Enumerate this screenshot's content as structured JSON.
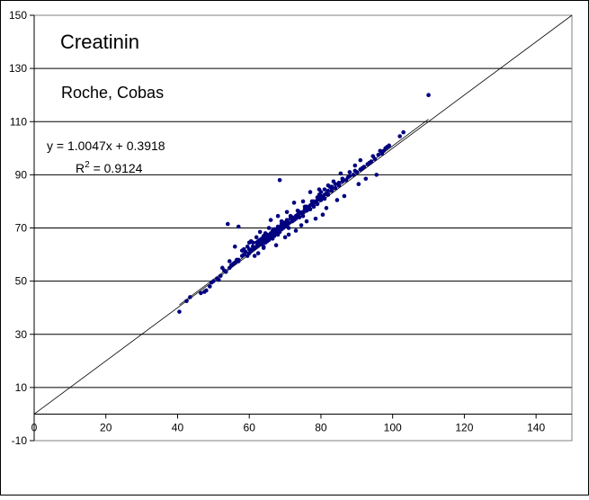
{
  "chart_data": {
    "type": "scatter",
    "title": "Creatinin",
    "subtitle": "Roche, Cobas",
    "equation": "y = 1.0047x + 0.3918",
    "r2_prefix": "R",
    "r2_sup": "2",
    "r2_value": " = 0.9124",
    "xlim": [
      0,
      150
    ],
    "ylim": [
      -10,
      150
    ],
    "xticks": [
      0,
      20,
      40,
      60,
      80,
      100,
      120,
      140
    ],
    "yticks": [
      -10,
      10,
      30,
      50,
      70,
      90,
      110,
      130,
      150
    ],
    "grid": "horizontal",
    "identity_line": {
      "slope": 1,
      "intercept": 0
    },
    "trendline": {
      "slope": 1.0047,
      "intercept": 0.3918
    },
    "colors": {
      "points": "#000080",
      "lines": "#000000",
      "grid": "#000000",
      "background": "#ffffff"
    },
    "x": [
      40.5,
      42.5,
      43.5,
      46.5,
      47.5,
      48.0,
      49.0,
      49.5,
      50.0,
      51.0,
      51.5,
      52.0,
      53.0,
      53.5,
      54.5,
      55.0,
      55.5,
      56.0,
      56.5,
      57.0,
      57.0,
      58.0,
      58.5,
      59.0,
      59.5,
      60.0,
      60.0,
      60.5,
      61.0,
      61.0,
      61.5,
      62.0,
      62.0,
      62.5,
      63.0,
      63.0,
      63.5,
      63.5,
      64.0,
      64.0,
      64.5,
      64.5,
      65.0,
      65.0,
      65.5,
      65.5,
      66.0,
      66.0,
      66.5,
      66.5,
      67.0,
      67.0,
      67.5,
      67.5,
      68.0,
      68.0,
      68.5,
      68.5,
      69.0,
      69.0,
      69.5,
      69.5,
      70.0,
      70.0,
      70.5,
      70.5,
      71.0,
      71.0,
      71.5,
      72.0,
      72.0,
      72.5,
      73.0,
      73.0,
      73.5,
      74.0,
      74.0,
      74.5,
      75.0,
      75.0,
      75.5,
      76.0,
      76.0,
      76.5,
      77.0,
      77.0,
      77.5,
      78.0,
      78.0,
      78.5,
      79.0,
      79.0,
      79.5,
      80.0,
      80.0,
      80.5,
      81.0,
      81.0,
      81.5,
      82.0,
      82.0,
      83.0,
      83.0,
      84.0,
      84.0,
      85.0,
      85.0,
      86.0,
      86.0,
      87.0,
      87.5,
      88.0,
      89.0,
      89.5,
      90.0,
      91.0,
      91.5,
      92.0,
      93.0,
      93.5,
      94.0,
      95.0,
      96.0,
      97.0,
      97.5,
      98.0,
      99.0,
      54.0,
      57.0,
      60.5,
      63.0,
      65.5,
      66.0,
      68.0,
      68.5,
      69.0,
      70.5,
      72.5,
      75.0,
      77.0,
      79.5,
      82.0,
      83.5,
      85.5,
      88.0,
      89.5,
      91.0,
      94.5,
      96.5,
      98.5,
      102.0,
      103.0,
      110.0,
      56.0,
      58.0,
      61.5,
      62.5,
      64.0,
      67.5,
      70.0,
      71.0,
      73.0,
      74.5,
      76.0,
      78.5,
      80.5,
      81.5,
      84.5,
      86.5,
      90.5,
      92.5,
      95.5,
      62.0,
      64.5,
      66.5,
      68.0,
      69.5,
      71.5,
      73.5,
      75.5,
      77.5,
      79.0,
      80.0,
      82.5,
      60.0,
      63.5,
      65.0,
      67.0,
      69.0,
      72.0,
      74.0,
      76.5,
      78.0,
      79.5,
      81.0,
      83.0,
      86.0,
      52.5,
      54.5,
      58.5,
      59.5,
      61.0,
      62.5,
      64.0,
      66.0,
      68.5,
      70.5
    ],
    "y": [
      38.5,
      42.5,
      44.0,
      45.5,
      46.0,
      46.5,
      48.0,
      49.5,
      50.0,
      51.0,
      50.5,
      52.0,
      54.0,
      53.5,
      55.0,
      56.0,
      56.5,
      57.0,
      58.0,
      58.0,
      57.5,
      59.5,
      60.0,
      61.0,
      59.5,
      60.5,
      62.0,
      61.5,
      62.0,
      63.0,
      62.5,
      63.0,
      64.5,
      63.5,
      64.0,
      65.5,
      64.0,
      66.0,
      65.0,
      63.0,
      66.0,
      64.5,
      66.5,
      65.0,
      67.0,
      65.5,
      66.5,
      68.0,
      67.5,
      66.0,
      68.5,
      67.0,
      68.0,
      69.5,
      69.0,
      67.5,
      70.0,
      68.5,
      69.5,
      71.0,
      70.0,
      71.5,
      70.5,
      72.0,
      71.0,
      73.0,
      72.0,
      70.0,
      73.5,
      72.5,
      74.0,
      73.0,
      74.5,
      73.5,
      75.0,
      74.0,
      76.0,
      75.5,
      76.0,
      74.5,
      77.0,
      76.5,
      78.0,
      77.0,
      78.5,
      77.0,
      79.0,
      78.0,
      80.0,
      79.5,
      80.5,
      79.0,
      81.0,
      80.5,
      82.0,
      81.5,
      82.5,
      81.0,
      83.0,
      82.5,
      84.0,
      84.0,
      85.5,
      85.0,
      86.5,
      86.0,
      87.0,
      87.5,
      88.5,
      88.0,
      89.0,
      89.5,
      90.0,
      91.5,
      91.0,
      92.0,
      92.5,
      93.0,
      94.0,
      94.5,
      95.0,
      96.0,
      97.5,
      98.0,
      99.0,
      100.0,
      101.0,
      71.5,
      70.5,
      65.0,
      68.5,
      70.0,
      73.0,
      74.5,
      88.0,
      72.5,
      76.0,
      79.5,
      80.0,
      83.5,
      84.5,
      86.0,
      87.5,
      90.5,
      91.0,
      93.5,
      95.5,
      97.0,
      99.0,
      100.5,
      104.5,
      106.0,
      120.0,
      63.0,
      61.5,
      59.5,
      60.5,
      62.5,
      63.5,
      66.5,
      67.5,
      69.0,
      71.0,
      72.5,
      73.5,
      75.0,
      77.5,
      80.5,
      82.0,
      86.5,
      88.5,
      90.0,
      66.5,
      68.0,
      69.0,
      70.5,
      72.0,
      74.5,
      76.5,
      78.0,
      80.0,
      81.5,
      83.5,
      85.5,
      64.5,
      65.5,
      67.5,
      69.5,
      71.5,
      73.5,
      75.5,
      77.5,
      79.5,
      82.5,
      84.5,
      85.0,
      88.5,
      55.0,
      57.5,
      62.0,
      63.0,
      64.5,
      65.0,
      67.0,
      67.5,
      70.0,
      72.5
    ]
  }
}
